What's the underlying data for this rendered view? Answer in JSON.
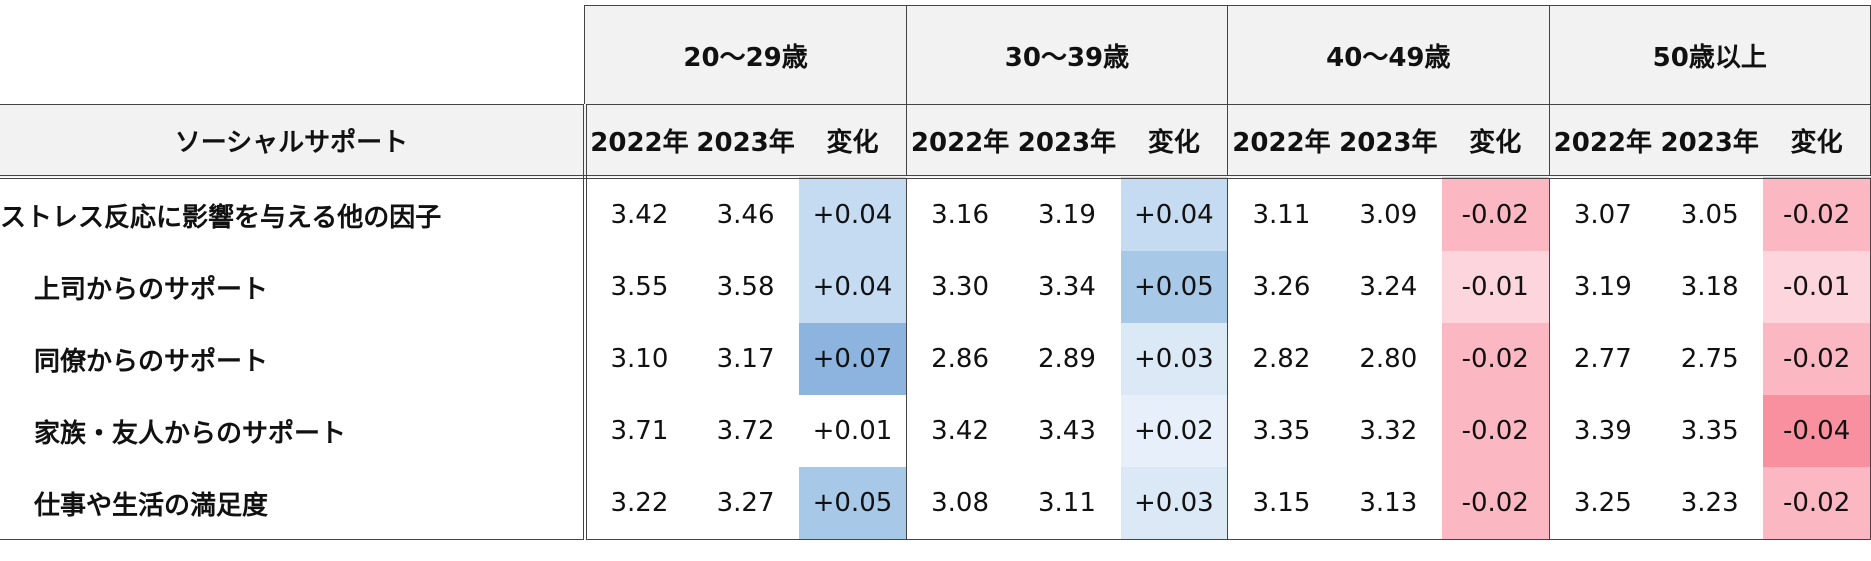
{
  "table": {
    "corner": "ソーシャルサポート",
    "groups": [
      "20～29歳",
      "30～39歳",
      "40～49歳",
      "50歳以上"
    ],
    "subheaders": [
      "2022年",
      "2023年",
      "変化"
    ],
    "rows": [
      {
        "label": "ストレス反応に影響を与える他の因子",
        "values": [
          "3.42",
          "3.46",
          "+0.04",
          "3.16",
          "3.19",
          "+0.04",
          "3.11",
          "3.09",
          "-0.02",
          "3.07",
          "3.05",
          "-0.02"
        ],
        "change_colors": [
          "#c5dbf1",
          "#c5dbf1",
          "#fcb8c2",
          "#fcb8c2"
        ]
      },
      {
        "label": "上司からのサポート",
        "values": [
          "3.55",
          "3.58",
          "+0.04",
          "3.30",
          "3.34",
          "+0.05",
          "3.26",
          "3.24",
          "-0.01",
          "3.19",
          "3.18",
          "-0.01"
        ],
        "change_colors": [
          "#c5dbf1",
          "#a8c8e8",
          "#fcd6dc",
          "#fcd6dc"
        ]
      },
      {
        "label": "同僚からのサポート",
        "values": [
          "3.10",
          "3.17",
          "+0.07",
          "2.86",
          "2.89",
          "+0.03",
          "2.82",
          "2.80",
          "-0.02",
          "2.77",
          "2.75",
          "-0.02"
        ],
        "change_colors": [
          "#8cb4df",
          "#dbe8f6",
          "#fcb8c2",
          "#fcb8c2"
        ]
      },
      {
        "label": "家族・友人からのサポート",
        "values": [
          "3.71",
          "3.72",
          "+0.01",
          "3.42",
          "3.43",
          "+0.02",
          "3.35",
          "3.32",
          "-0.02",
          "3.39",
          "3.35",
          "-0.04"
        ],
        "change_colors": [
          "#ffffff",
          "#e6effa",
          "#fcb8c2",
          "#f890a0"
        ]
      },
      {
        "label": "仕事や生活の満足度",
        "values": [
          "3.22",
          "3.27",
          "+0.05",
          "3.08",
          "3.11",
          "+0.03",
          "3.15",
          "3.13",
          "-0.02",
          "3.25",
          "3.23",
          "-0.02"
        ],
        "change_colors": [
          "#a8c8e8",
          "#dbe8f6",
          "#fcb8c2",
          "#fcb8c2"
        ]
      }
    ]
  }
}
